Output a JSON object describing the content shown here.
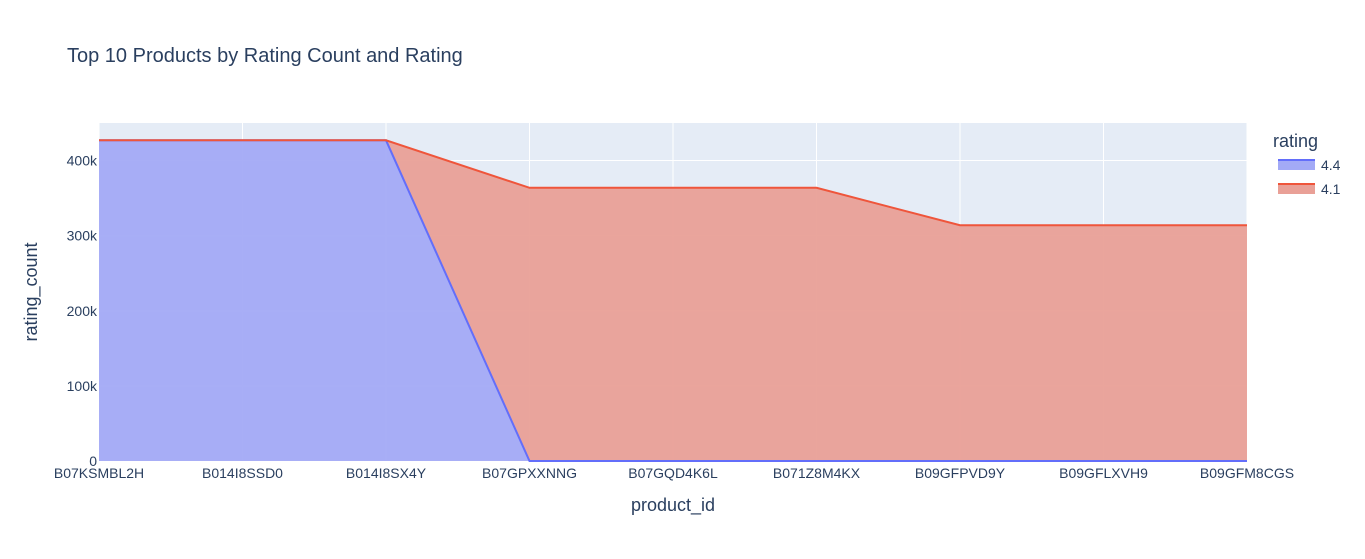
{
  "chart_data": {
    "type": "area",
    "title": "Top 10 Products by Rating Count and Rating",
    "xlabel": "product_id",
    "ylabel": "rating_count",
    "categories": [
      "B07KSMBL2H",
      "B014I8SSD0",
      "B014I8SX4Y",
      "B07GPXXNNG",
      "B07GQD4K6L",
      "B071Z8M4KX",
      "B09GFPVD9Y",
      "B09GFLXVH9",
      "B09GFM8CGS"
    ],
    "ylim": [
      0,
      450000
    ],
    "yticks": [
      0,
      100000,
      200000,
      300000,
      400000
    ],
    "ytick_labels": [
      "0",
      "100k",
      "200k",
      "300k",
      "400k"
    ],
    "grid": true,
    "legend": {
      "title": "rating",
      "placement": "top-right"
    },
    "series": [
      {
        "name": "4.4",
        "color": "#636efa",
        "fill": "#a3aaf6",
        "values": [
          426973,
          426973,
          426973,
          0,
          0,
          0,
          0,
          0,
          0
        ]
      },
      {
        "name": "4.1",
        "color": "#ef553b",
        "fill": "#e9a097",
        "values": [
          0,
          0,
          0,
          363713,
          363713,
          363713,
          313836,
          313836,
          313836
        ]
      }
    ]
  }
}
